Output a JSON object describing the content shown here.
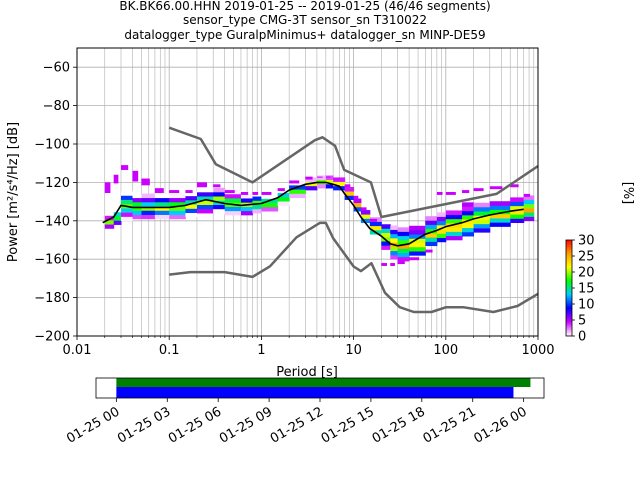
{
  "title_lines": [
    "BK.BK66.00.HHN   2019-01-25 -- 2019-01-25  (46/46 segments)",
    "sensor_type CMG-3T sensor_sn T310022",
    "datalogger_type GuralpMinimus+ datalogger_sn MINP-DE59"
  ],
  "chart_data": {
    "type": "heatmap",
    "xlabel": "Period [s]",
    "ylabel": "Power [m²/s⁴/Hz] [dB]",
    "x_scale": "log",
    "xlim": [
      0.01,
      1000
    ],
    "ylim": [
      -200,
      -50
    ],
    "x_tick_labels": [
      "0.01",
      "0.1",
      "1",
      "10",
      "100",
      "1000"
    ],
    "y_ticks": [
      -200,
      -180,
      -160,
      -140,
      -120,
      -100,
      -80,
      -60
    ],
    "y_tick_labels": [
      "−200",
      "−180",
      "−160",
      "−140",
      "−120",
      "−100",
      "−80",
      "−60"
    ],
    "grid": true,
    "colorbar": {
      "label": "[%]",
      "ticks": [
        0,
        5,
        10,
        15,
        20,
        25,
        30
      ],
      "range": [
        0,
        30
      ],
      "colors": [
        "#ffffff",
        "#cc00ff",
        "#0000ff",
        "#00ccff",
        "#00ff00",
        "#ffff00",
        "#ff9900",
        "#ff0000"
      ]
    },
    "mean_curve": {
      "color": "#000000",
      "points": [
        [
          0.019,
          -141
        ],
        [
          0.025,
          -138
        ],
        [
          0.03,
          -132
        ],
        [
          0.04,
          -133
        ],
        [
          0.06,
          -133
        ],
        [
          0.1,
          -133
        ],
        [
          0.15,
          -132
        ],
        [
          0.25,
          -129
        ],
        [
          0.4,
          -131
        ],
        [
          0.6,
          -132
        ],
        [
          1,
          -131
        ],
        [
          1.5,
          -128
        ],
        [
          2,
          -124
        ],
        [
          3,
          -121
        ],
        [
          4,
          -120
        ],
        [
          5,
          -120
        ],
        [
          6,
          -121
        ],
        [
          7,
          -122
        ],
        [
          8,
          -126
        ],
        [
          10,
          -132
        ],
        [
          12,
          -138
        ],
        [
          15,
          -144
        ],
        [
          20,
          -148
        ],
        [
          25,
          -152
        ],
        [
          30,
          -153
        ],
        [
          40,
          -152
        ],
        [
          60,
          -147
        ],
        [
          80,
          -145
        ],
        [
          100,
          -143
        ],
        [
          150,
          -141
        ],
        [
          200,
          -139
        ],
        [
          300,
          -137
        ],
        [
          500,
          -135
        ],
        [
          700,
          -134
        ]
      ]
    },
    "noise_models": [
      {
        "name": "high",
        "color": "#666666",
        "points": [
          [
            0.1,
            -91.5
          ],
          [
            0.22,
            -97.4
          ],
          [
            0.32,
            -110.5
          ],
          [
            0.8,
            -120
          ],
          [
            3.8,
            -98
          ],
          [
            4.6,
            -96.5
          ],
          [
            6.3,
            -101
          ],
          [
            7.9,
            -113.5
          ],
          [
            15.4,
            -120
          ],
          [
            20,
            -138
          ],
          [
            354.8,
            -126
          ],
          [
            1000,
            -111.5
          ]
        ]
      },
      {
        "name": "low",
        "color": "#666666",
        "points": [
          [
            0.1,
            -168
          ],
          [
            0.17,
            -166.7
          ],
          [
            0.4,
            -166.7
          ],
          [
            0.8,
            -169.2
          ],
          [
            1.24,
            -163.7
          ],
          [
            2.4,
            -148.6
          ],
          [
            4.3,
            -141.1
          ],
          [
            5,
            -141.1
          ],
          [
            6,
            -149
          ],
          [
            10,
            -163.8
          ],
          [
            12,
            -166.2
          ],
          [
            15.6,
            -162.1
          ],
          [
            21.9,
            -177.5
          ],
          [
            31.6,
            -185
          ],
          [
            45,
            -187.5
          ],
          [
            70,
            -187.5
          ],
          [
            101,
            -185
          ],
          [
            154,
            -185
          ],
          [
            328,
            -187.5
          ],
          [
            600,
            -184.4
          ],
          [
            1000,
            -178
          ]
        ]
      }
    ],
    "psd_density": [
      {
        "x": 0.02,
        "lo": -144,
        "hi": -138,
        "mode": -141,
        "spike_lo": -125,
        "spike_hi": -120
      },
      {
        "x": 0.025,
        "lo": -142,
        "hi": -134,
        "mode": -138,
        "spike_lo": -120,
        "spike_hi": -116
      },
      {
        "x": 0.03,
        "lo": -140,
        "hi": -126,
        "mode": -132,
        "spike_lo": -113,
        "spike_hi": -111
      },
      {
        "x": 0.04,
        "lo": -139,
        "hi": -126,
        "mode": -133,
        "spike_lo": -119,
        "spike_hi": -114
      },
      {
        "x": 0.05,
        "lo": -139,
        "hi": -127,
        "mode": -133,
        "spike_lo": -121,
        "spike_hi": -118
      },
      {
        "x": 0.07,
        "lo": -139,
        "hi": -127,
        "mode": -133,
        "spike_lo": -125,
        "spike_hi": -123
      },
      {
        "x": 0.1,
        "lo": -139,
        "hi": -127,
        "mode": -133,
        "spike_lo": -125,
        "spike_hi": -124
      },
      {
        "x": 0.15,
        "lo": -138,
        "hi": -127,
        "mode": -132,
        "spike_lo": -125,
        "spike_hi": -124
      },
      {
        "x": 0.2,
        "lo": -136,
        "hi": -124,
        "mode": -130,
        "spike_lo": -122,
        "spike_hi": -120
      },
      {
        "x": 0.3,
        "lo": -136,
        "hi": -124,
        "mode": -129,
        "spike_lo": -122,
        "spike_hi": -121
      },
      {
        "x": 0.4,
        "lo": -137,
        "hi": -126,
        "mode": -131,
        "spike_lo": -125,
        "spike_hi": -124
      },
      {
        "x": 0.6,
        "lo": -137,
        "hi": -127,
        "mode": -132,
        "spike_lo": -126,
        "spike_hi": -125
      },
      {
        "x": 0.8,
        "lo": -136,
        "hi": -127,
        "mode": -131,
        "spike_lo": -126,
        "spike_hi": -125
      },
      {
        "x": 1,
        "lo": -135,
        "hi": -127,
        "mode": -131,
        "spike_lo": -126,
        "spike_hi": -125
      },
      {
        "x": 1.5,
        "lo": -132,
        "hi": -125,
        "mode": -128,
        "spike_lo": -124,
        "spike_hi": -123
      },
      {
        "x": 2,
        "lo": -128,
        "hi": -121,
        "mode": -124,
        "spike_lo": -120,
        "spike_hi": -119
      },
      {
        "x": 3,
        "lo": -124,
        "hi": -118,
        "mode": -121,
        "spike_lo": -118,
        "spike_hi": -117
      },
      {
        "x": 4,
        "lo": -123,
        "hi": -118,
        "mode": -120,
        "spike_lo": -117,
        "spike_hi": -117
      },
      {
        "x": 5,
        "lo": -123,
        "hi": -118,
        "mode": -120,
        "spike_lo": -117,
        "spike_hi": -117
      },
      {
        "x": 6,
        "lo": -124,
        "hi": -119,
        "mode": -121,
        "spike_lo": -118,
        "spike_hi": -118
      },
      {
        "x": 8,
        "lo": -129,
        "hi": -123,
        "mode": -126,
        "spike_lo": -122,
        "spike_hi": -121
      },
      {
        "x": 10,
        "lo": -135,
        "hi": -129,
        "mode": -132,
        "spike_lo": -128,
        "spike_hi": -127
      },
      {
        "x": 12,
        "lo": -141,
        "hi": -135,
        "mode": -138,
        "spike_lo": -134,
        "spike_hi": -133
      },
      {
        "x": 15,
        "lo": -147,
        "hi": -140,
        "mode": -144,
        "spike_lo": -140,
        "spike_hi": -139
      },
      {
        "x": 20,
        "lo": -155,
        "hi": -143,
        "mode": -148,
        "spike_lo": -163,
        "spike_hi": -162
      },
      {
        "x": 25,
        "lo": -160,
        "hi": -144,
        "mode": -152,
        "spike_lo": -163,
        "spike_hi": -162
      },
      {
        "x": 30,
        "lo": -161,
        "hi": -145,
        "mode": -153,
        "spike_lo": -162,
        "spike_hi": -161
      },
      {
        "x": 40,
        "lo": -158,
        "hi": -143,
        "mode": -152,
        "spike_lo": -160,
        "spike_hi": -159
      },
      {
        "x": 60,
        "lo": -153,
        "hi": -139,
        "mode": -147,
        "spike_lo": -156,
        "spike_hi": -155
      },
      {
        "x": 80,
        "lo": -151,
        "hi": -137,
        "mode": -145,
        "spike_lo": -126,
        "spike_hi": -125
      },
      {
        "x": 100,
        "lo": -150,
        "hi": -135,
        "mode": -143,
        "spike_lo": -126,
        "spike_hi": -125
      },
      {
        "x": 150,
        "lo": -148,
        "hi": -132,
        "mode": -141,
        "spike_lo": -125,
        "spike_hi": -124
      },
      {
        "x": 200,
        "lo": -146,
        "hi": -131,
        "mode": -139,
        "spike_lo": -124,
        "spike_hi": -123
      },
      {
        "x": 300,
        "lo": -143,
        "hi": -130,
        "mode": -137,
        "spike_lo": -123,
        "spike_hi": -122
      },
      {
        "x": 500,
        "lo": -141,
        "hi": -128,
        "mode": -135,
        "spike_lo": -122,
        "spike_hi": -121
      },
      {
        "x": 700,
        "lo": -140,
        "hi": -127,
        "mode": -134,
        "spike_lo": -127,
        "spike_hi": -126
      }
    ]
  },
  "coverage": {
    "tick_labels": [
      "01-25 00",
      "01-25 03",
      "01-25 06",
      "01-25 09",
      "01-25 12",
      "01-25 15",
      "01-25 18",
      "01-25 21",
      "01-26 00"
    ],
    "tick_hours": [
      0,
      3,
      6,
      9,
      12,
      15,
      18,
      21,
      24
    ],
    "range_hours": [
      -1.2,
      25.2
    ],
    "green_span_hours": [
      0,
      24.4
    ],
    "blue_span_hours": [
      0,
      23.4
    ],
    "green_color": "#008000",
    "blue_color": "#0000ff"
  }
}
